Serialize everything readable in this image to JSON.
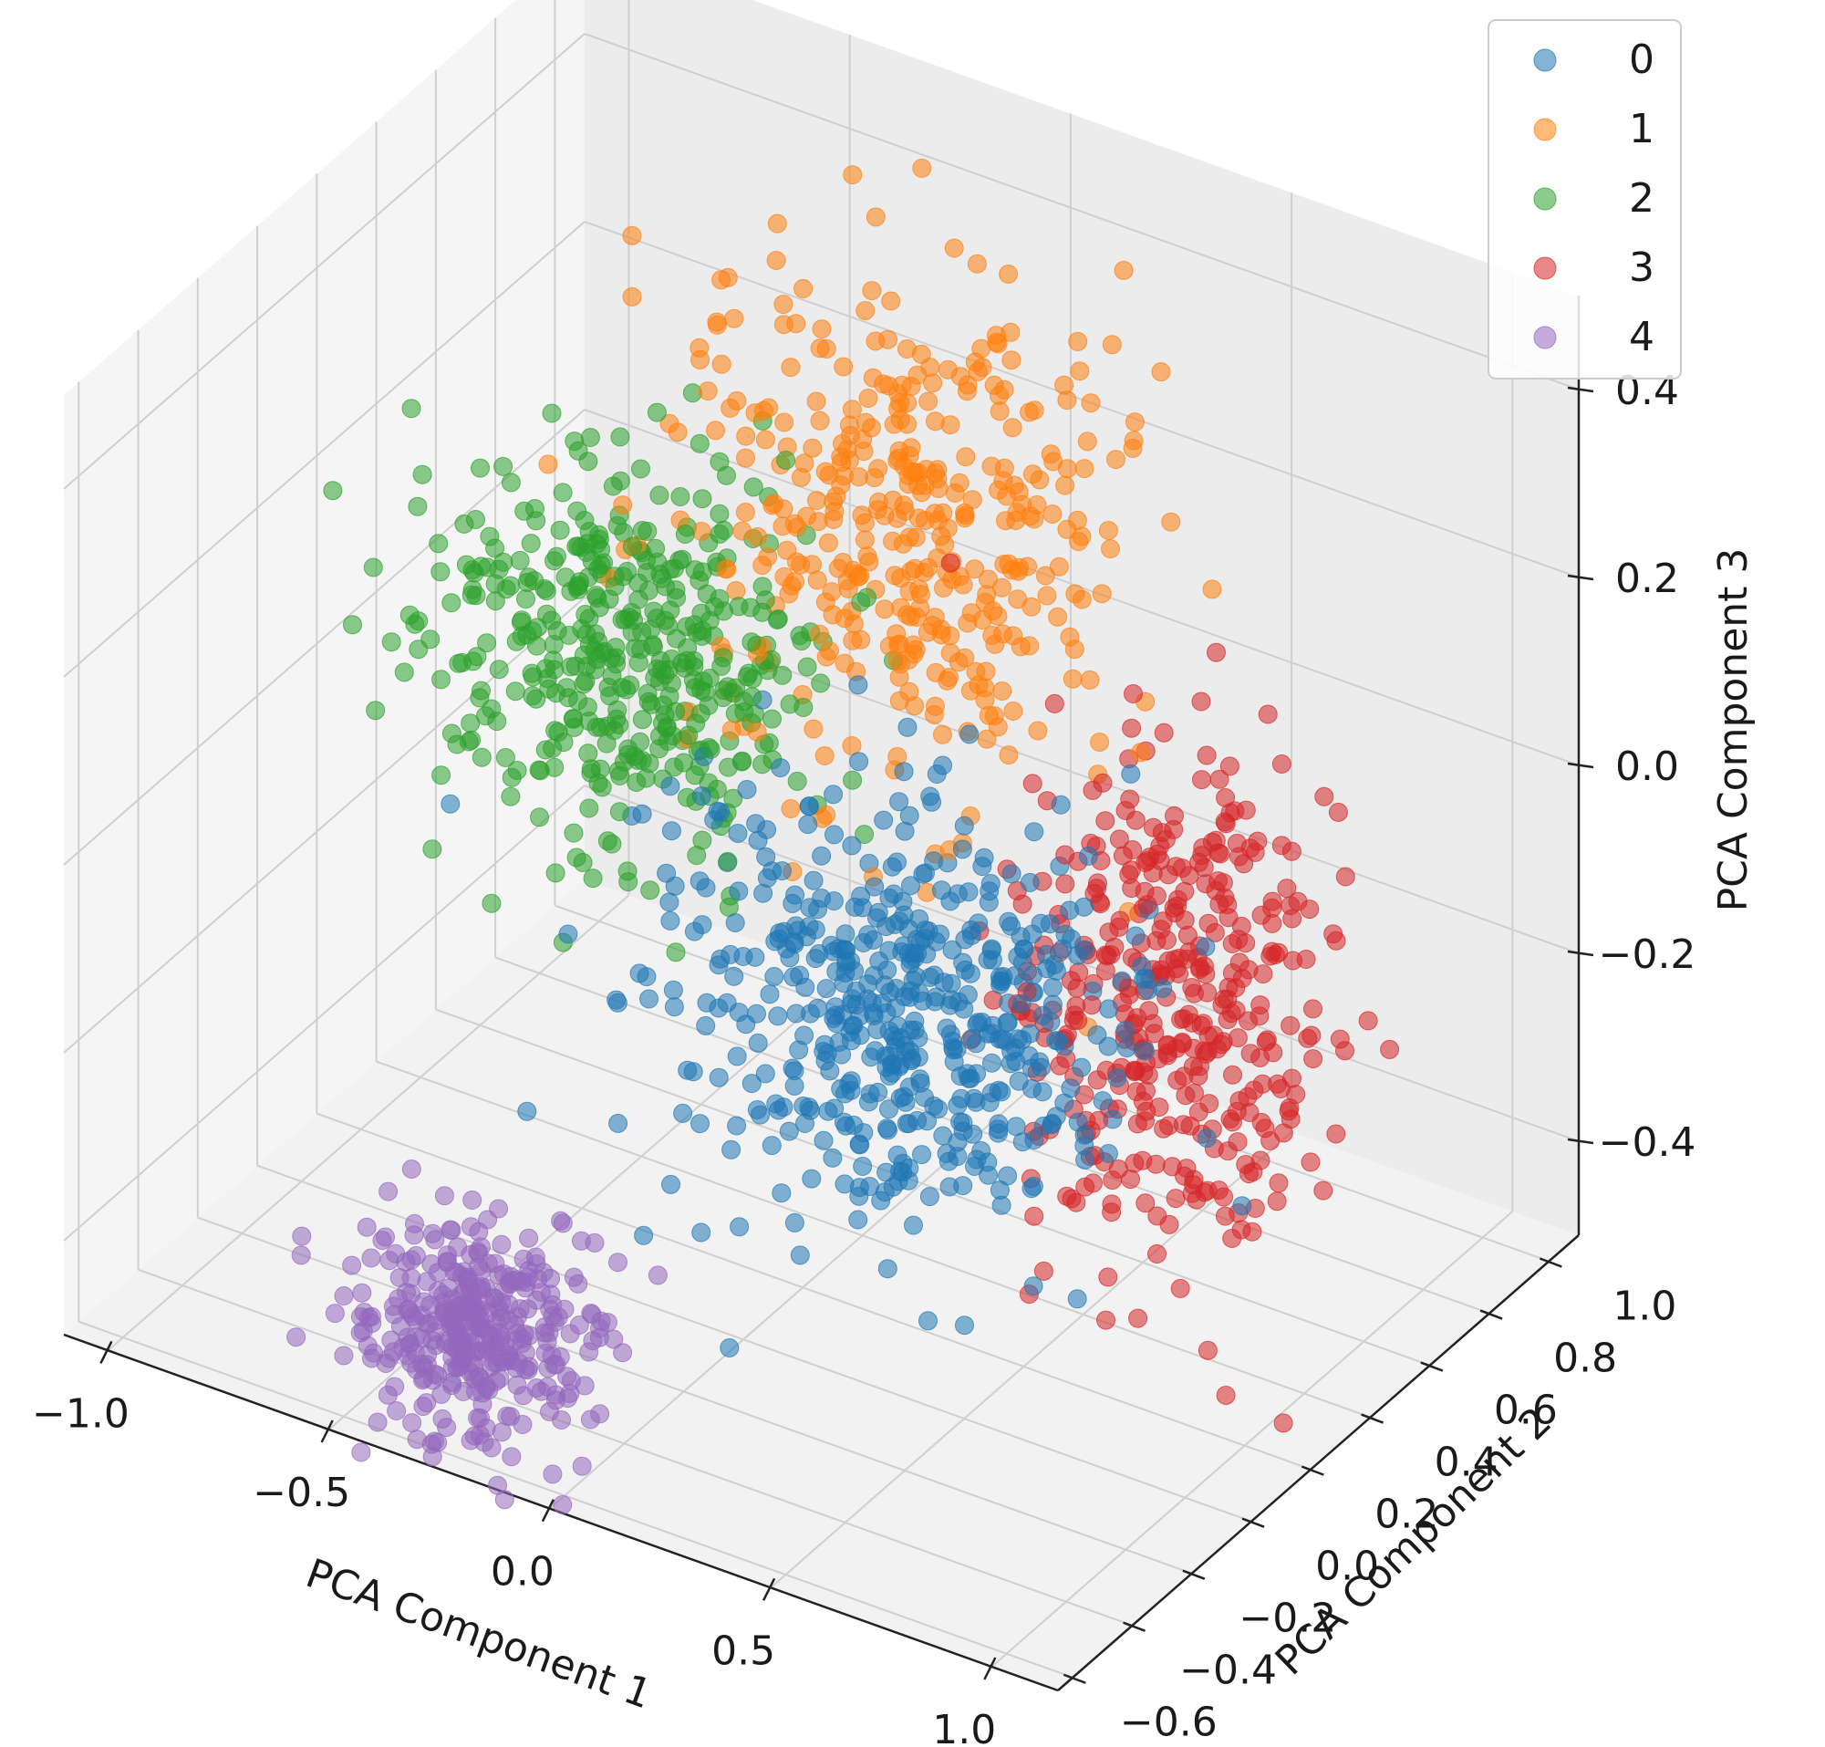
{
  "chart_data": {
    "type": "scatter",
    "projection": "3d",
    "title": "",
    "xlabel": "PCA Component 1",
    "ylabel": "PCA Component 2",
    "zlabel": "PCA Component 3",
    "xlim": [
      -1.1,
      1.15
    ],
    "ylim": [
      -0.65,
      1.1
    ],
    "zlim": [
      -0.5,
      0.5
    ],
    "xticks": [
      -1.0,
      -0.5,
      0.0,
      0.5,
      1.0
    ],
    "xtick_labels": [
      "−1.0",
      "−0.5",
      "0.0",
      "0.5",
      "1.0"
    ],
    "yticks": [
      -0.6,
      -0.4,
      -0.2,
      0.0,
      0.2,
      0.4,
      0.6,
      0.8,
      1.0
    ],
    "ytick_labels": [
      "−0.6",
      "−0.4",
      "−0.2",
      "0.0",
      "0.2",
      "0.4",
      "0.6",
      "0.8",
      "1.0"
    ],
    "zticks": [
      -0.4,
      -0.2,
      0.0,
      0.2,
      0.4
    ],
    "ztick_labels": [
      "−0.4",
      "−0.2",
      "0.0",
      "0.2",
      "0.4"
    ],
    "grid": true,
    "legend_position": "top-right",
    "marker_alpha": 0.55,
    "series": [
      {
        "name": "0",
        "color": "#1f77b4",
        "n": 520,
        "center": [
          0.25,
          0.15,
          -0.15
        ],
        "spread": [
          0.25,
          0.16,
          0.1
        ]
      },
      {
        "name": "1",
        "color": "#ff7f0e",
        "n": 400,
        "center": [
          0.0,
          0.55,
          0.2
        ],
        "spread": [
          0.22,
          0.14,
          0.13
        ]
      },
      {
        "name": "2",
        "color": "#2ca02c",
        "n": 430,
        "center": [
          -0.5,
          0.35,
          0.05
        ],
        "spread": [
          0.2,
          0.15,
          0.09
        ]
      },
      {
        "name": "3",
        "color": "#d62728",
        "n": 400,
        "center": [
          0.6,
          0.55,
          -0.2
        ],
        "spread": [
          0.15,
          0.14,
          0.14
        ]
      },
      {
        "name": "4",
        "color": "#9467bd",
        "n": 360,
        "center": [
          -0.3,
          -0.45,
          -0.42
        ],
        "spread": [
          0.12,
          0.09,
          0.05
        ]
      }
    ]
  }
}
